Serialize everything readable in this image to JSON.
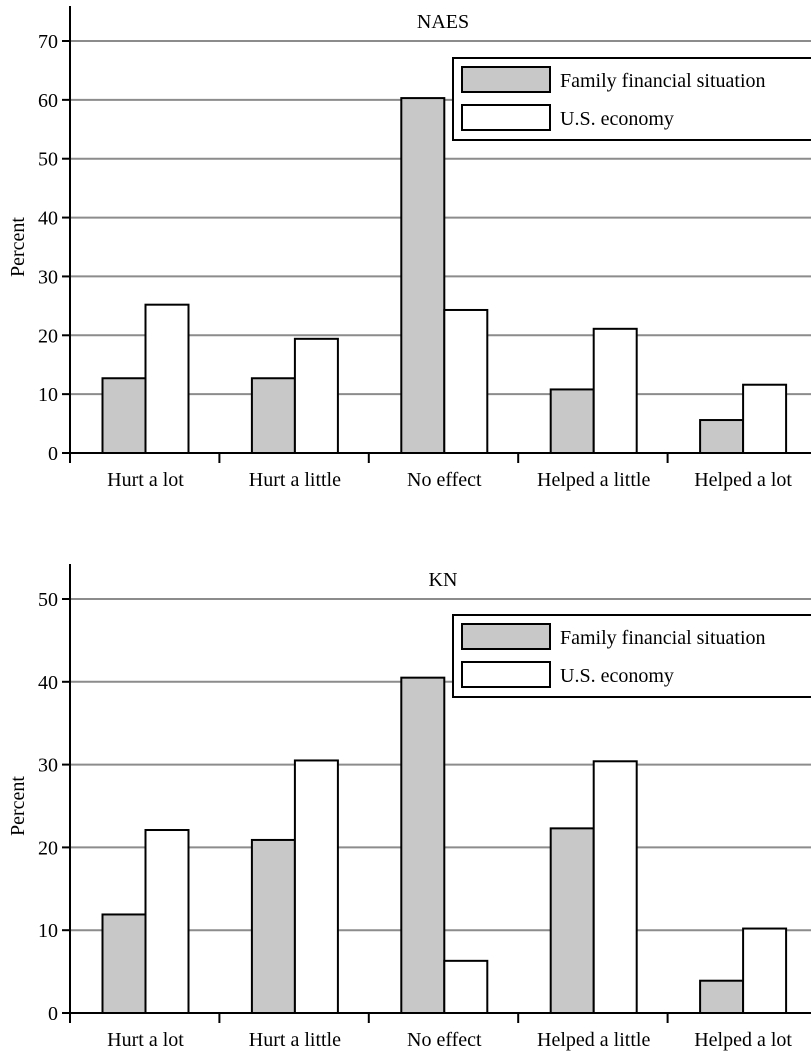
{
  "chart_data": [
    {
      "type": "bar",
      "title": "NAES",
      "xlabel": "",
      "ylabel": "Percent",
      "ylim": [
        0,
        70
      ],
      "yticks": [
        0,
        10,
        20,
        30,
        40,
        50,
        60,
        70
      ],
      "grid": true,
      "legend_placement": "top-right",
      "categories": [
        "Hurt a lot",
        "Hurt a little",
        "No effect",
        "Helped a little",
        "Helped a lot"
      ],
      "series": [
        {
          "name": "Family financial situation",
          "color": "#c8c8c8",
          "values": [
            12.7,
            12.7,
            60.3,
            10.8,
            5.6
          ]
        },
        {
          "name": "U.S. economy",
          "color": "#ffffff",
          "values": [
            25.2,
            19.4,
            24.3,
            21.1,
            11.6
          ]
        }
      ]
    },
    {
      "type": "bar",
      "title": "KN",
      "xlabel": "",
      "ylabel": "Percent",
      "ylim": [
        0,
        50
      ],
      "yticks": [
        0,
        10,
        20,
        30,
        40,
        50
      ],
      "grid": true,
      "legend_placement": "top-right",
      "categories": [
        "Hurt a lot",
        "Hurt a little",
        "No effect",
        "Helped a little",
        "Helped a lot"
      ],
      "series": [
        {
          "name": "Family financial situation",
          "color": "#c8c8c8",
          "values": [
            11.9,
            20.9,
            40.5,
            22.3,
            3.9
          ]
        },
        {
          "name": "U.S. economy",
          "color": "#ffffff",
          "values": [
            22.1,
            30.5,
            6.3,
            30.4,
            10.2
          ]
        }
      ]
    }
  ]
}
